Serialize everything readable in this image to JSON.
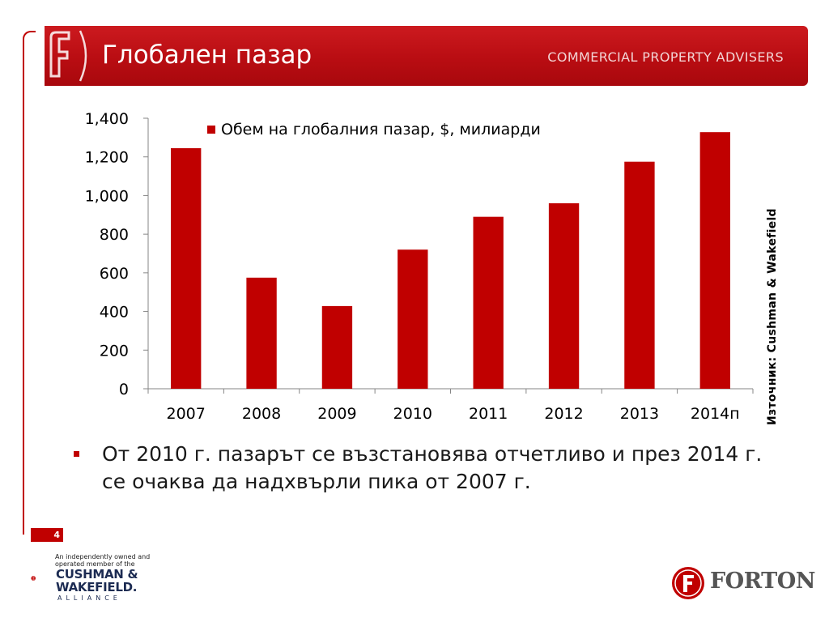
{
  "slide": {
    "title": "Глобален пазар",
    "subtitle": "COMMERCIAL PROPERTY ADVISERS",
    "source": "Източник: Cushman & Wakefield",
    "bullet": "От 2010 г. пазарът се възстановява отчетливо и през 2014 г. се очаква да надхвърли пика от 2007 г.",
    "page_number": "4",
    "accent_color": "#c00000"
  },
  "chart_data": {
    "type": "bar",
    "title": "",
    "xlabel": "",
    "ylabel": "",
    "categories": [
      "2007",
      "2008",
      "2009",
      "2010",
      "2011",
      "2012",
      "2013",
      "2014п"
    ],
    "series": [
      {
        "name": "Обем на глобалния пазар, $, милиарди",
        "values": [
          1245,
          575,
          428,
          720,
          890,
          960,
          1175,
          1328
        ],
        "color": "#c00000"
      }
    ],
    "ylim": [
      0,
      1400
    ],
    "yticks": [
      0,
      200,
      400,
      600,
      800,
      1000,
      1200,
      1400
    ],
    "ytick_labels": [
      "0",
      "200",
      "400",
      "600",
      "800",
      "1,000",
      "1,200",
      "1,400"
    ],
    "grid": false,
    "legend_position": "top"
  },
  "logos": {
    "cw_tagline_1": "An independently owned and",
    "cw_tagline_2": "operated member of the",
    "cw_name_1": "CUSHMAN &",
    "cw_name_2": "WAKEFIELD.",
    "cw_alliance": "ALLIANCE",
    "forton": "FORTON"
  }
}
